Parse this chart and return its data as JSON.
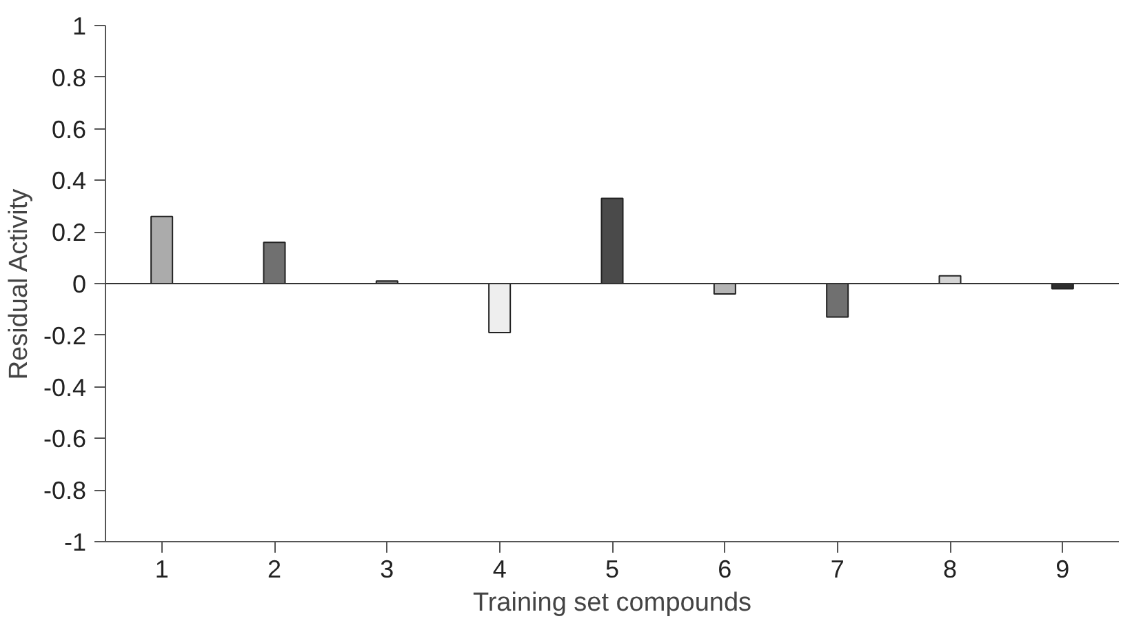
{
  "chart_data": {
    "type": "bar",
    "xlabel": "Training set compounds",
    "ylabel": "Residual Activity",
    "categories": [
      "1",
      "2",
      "3",
      "4",
      "5",
      "6",
      "7",
      "8",
      "9"
    ],
    "values": [
      0.26,
      0.16,
      0.01,
      -0.19,
      0.33,
      -0.04,
      -0.13,
      0.03,
      -0.02
    ],
    "colors": [
      "#ababab",
      "#707070",
      "#808080",
      "#eeeeee",
      "#4a4a4a",
      "#b4b4b4",
      "#707070",
      "#d4d4d4",
      "#2e2e2e"
    ],
    "ylim": [
      -1,
      1
    ],
    "yticks": [
      -1,
      -0.8,
      -0.6,
      -0.4,
      -0.2,
      0,
      0.2,
      0.4,
      0.6,
      0.8,
      1
    ],
    "ref_lines": [
      {
        "axis": "y",
        "value": 0,
        "color": "#333333"
      }
    ],
    "grid": false
  }
}
